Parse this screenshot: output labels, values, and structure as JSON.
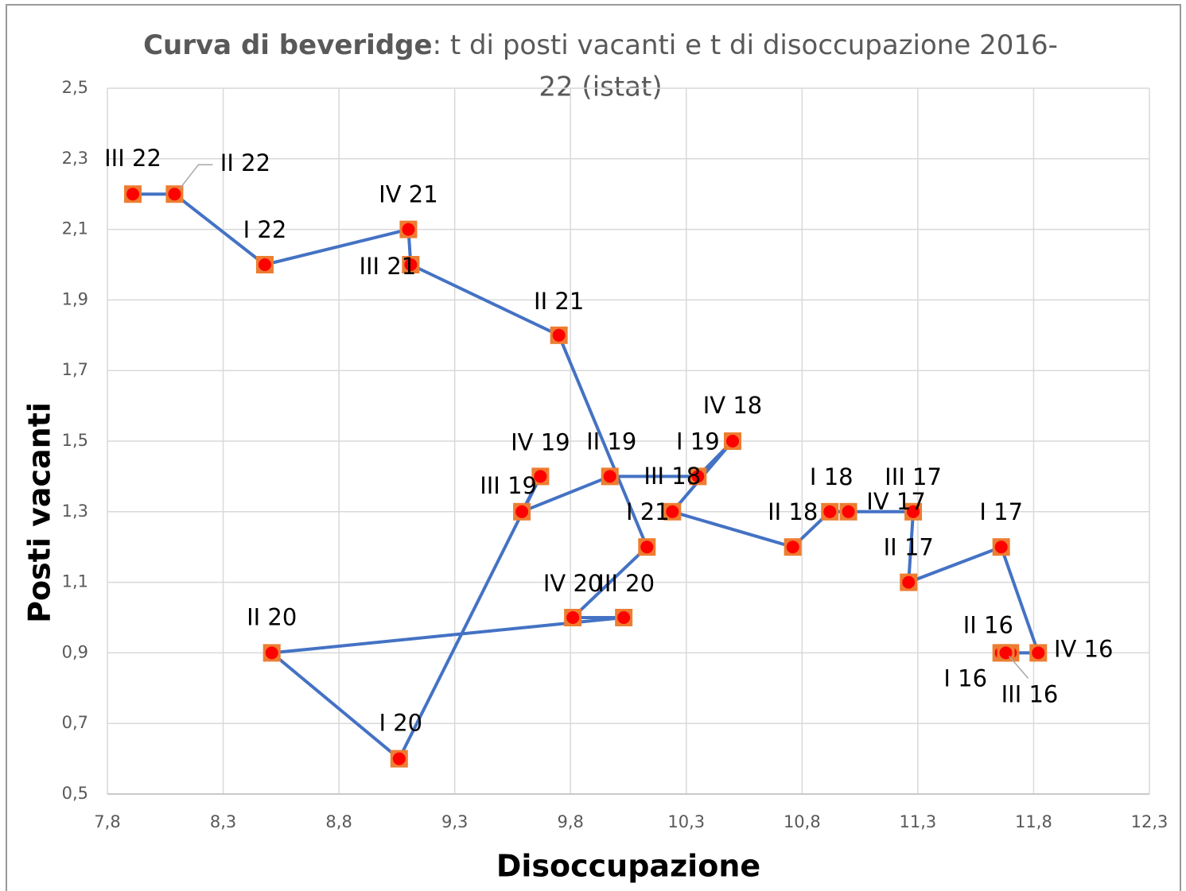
{
  "chart_data": {
    "type": "scatter-line",
    "title": [
      "Curva di beveridge",
      ": t di posti vacanti e t di disoccupazione 2016-",
      "22 (istat)"
    ],
    "x_label": "Disoccupazione",
    "y_label": "Posti vacanti",
    "series": [
      {
        "color": "#4472c4",
        "marker_color": "#ed7d31",
        "point_color": "#ff0000",
        "labels": [
          "I 16",
          "II 16",
          "III 16",
          "IV 16",
          "I 17",
          "II 17",
          "III 17",
          "IV 17",
          "I 18",
          "II 18",
          "III 18",
          "IV 18",
          "I 19",
          "II 19",
          "III 19",
          "IV 19",
          "I 20",
          "II 20",
          "III 20",
          "IV 20",
          "I 21",
          "II 21",
          "III 21",
          "IV 21",
          "I 22",
          "II 22",
          "III 22"
        ],
        "x": [
          11.66,
          11.7,
          11.68,
          11.82,
          11.66,
          11.26,
          11.28,
          11.0,
          10.92,
          10.76,
          10.24,
          10.5,
          10.35,
          9.97,
          9.59,
          9.67,
          9.06,
          8.51,
          10.03,
          9.81,
          10.13,
          9.75,
          9.11,
          9.1,
          8.48,
          8.09,
          7.91
        ],
        "values": [
          0.9,
          0.9,
          0.9,
          0.9,
          1.2,
          1.1,
          1.3,
          1.3,
          1.3,
          1.2,
          1.3,
          1.5,
          1.4,
          1.4,
          1.3,
          1.4,
          0.6,
          0.9,
          1.0,
          1.0,
          1.2,
          1.8,
          2.0,
          2.1,
          2.0,
          2.2,
          2.2
        ]
      }
    ],
    "xlim": [
      7.8,
      12.3
    ],
    "xticks": [
      {
        "value": 7.8,
        "label": "7,8"
      },
      {
        "value": 8.3,
        "label": "8,3"
      },
      {
        "value": 8.8,
        "label": "8,8"
      },
      {
        "value": 9.3,
        "label": "9,3"
      },
      {
        "value": 9.8,
        "label": "9,8"
      },
      {
        "value": 10.3,
        "label": "10,3"
      },
      {
        "value": 10.8,
        "label": "10,8"
      },
      {
        "value": 11.3,
        "label": "11,3"
      },
      {
        "value": 11.8,
        "label": "11,8"
      },
      {
        "value": 12.3,
        "label": "12,3"
      }
    ],
    "ylim": [
      0.5,
      2.5
    ],
    "yticks": [
      {
        "value": 0.5,
        "label": "0,5"
      },
      {
        "value": 0.7,
        "label": "0,7"
      },
      {
        "value": 0.9,
        "label": "0,9"
      },
      {
        "value": 1.1,
        "label": "1,1"
      },
      {
        "value": 1.3,
        "label": "1,3"
      },
      {
        "value": 1.5,
        "label": "1,5"
      },
      {
        "value": 1.7,
        "label": "1,7"
      },
      {
        "value": 1.9,
        "label": "1,9"
      },
      {
        "value": 2.1,
        "label": "2,1"
      },
      {
        "value": 2.3,
        "label": "2,3"
      },
      {
        "value": 2.5,
        "label": "2,5"
      }
    ],
    "grid": true
  }
}
